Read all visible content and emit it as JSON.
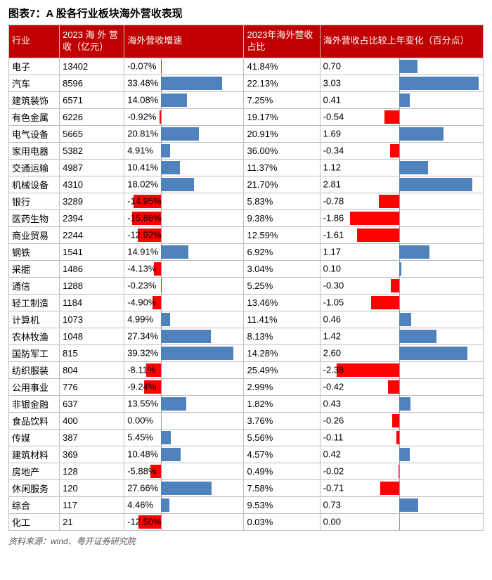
{
  "title": "图表7：A 股各行业板块海外营收表现",
  "source": "资料来源：wind、粤开证券研究院",
  "colors": {
    "header_bg": "#c00000",
    "header_text": "#ffffff",
    "pos_bar": "#4f81bd",
    "neg_bar": "#ff0000",
    "border": "#bfbfbf",
    "text": "#000000"
  },
  "columns": [
    "行业",
    "2023 海 外 营 收（亿元）",
    "海外营收增速",
    "2023年海外营收占比",
    "海外营收占比较上年变化（百分点）"
  ],
  "growth_axis": {
    "min": -20,
    "max": 45
  },
  "change_axis": {
    "min": -3.0,
    "max": 3.2
  },
  "rows": [
    {
      "industry": "电子",
      "revenue": "13402",
      "growth_pct": -0.07,
      "share": "41.84%",
      "change": 0.7
    },
    {
      "industry": "汽车",
      "revenue": "8596",
      "growth_pct": 33.48,
      "share": "22.13%",
      "change": 3.03
    },
    {
      "industry": "建筑装饰",
      "revenue": "6571",
      "growth_pct": 14.08,
      "share": "7.25%",
      "change": 0.41
    },
    {
      "industry": "有色金属",
      "revenue": "6226",
      "growth_pct": -0.92,
      "share": "19.17%",
      "change": -0.54
    },
    {
      "industry": "电气设备",
      "revenue": "5665",
      "growth_pct": 20.81,
      "share": "20.91%",
      "change": 1.69
    },
    {
      "industry": "家用电器",
      "revenue": "5382",
      "growth_pct": 4.91,
      "share": "36.00%",
      "change": -0.34
    },
    {
      "industry": "交通运输",
      "revenue": "4987",
      "growth_pct": 10.41,
      "share": "11.37%",
      "change": 1.12
    },
    {
      "industry": "机械设备",
      "revenue": "4310",
      "growth_pct": 18.02,
      "share": "21.70%",
      "change": 2.81
    },
    {
      "industry": "银行",
      "revenue": "3289",
      "growth_pct": -14.95,
      "share": "5.83%",
      "change": -0.78
    },
    {
      "industry": "医药生物",
      "revenue": "2394",
      "growth_pct": -15.88,
      "share": "9.38%",
      "change": -1.86
    },
    {
      "industry": "商业贸易",
      "revenue": "2244",
      "growth_pct": -12.92,
      "share": "12.59%",
      "change": -1.61
    },
    {
      "industry": "钢铁",
      "revenue": "1541",
      "growth_pct": 14.91,
      "share": "6.92%",
      "change": 1.17
    },
    {
      "industry": "采掘",
      "revenue": "1486",
      "growth_pct": -4.13,
      "share": "3.04%",
      "change": 0.1
    },
    {
      "industry": "通信",
      "revenue": "1288",
      "growth_pct": -0.23,
      "share": "5.25%",
      "change": -0.3
    },
    {
      "industry": "轻工制造",
      "revenue": "1184",
      "growth_pct": -4.9,
      "share": "13.46%",
      "change": -1.05
    },
    {
      "industry": "计算机",
      "revenue": "1073",
      "growth_pct": 4.99,
      "share": "11.41%",
      "change": 0.46
    },
    {
      "industry": "农林牧渔",
      "revenue": "1048",
      "growth_pct": 27.34,
      "share": "8.13%",
      "change": 1.42
    },
    {
      "industry": "国防军工",
      "revenue": "815",
      "growth_pct": 39.32,
      "share": "14.28%",
      "change": 2.6
    },
    {
      "industry": "纺织服装",
      "revenue": "804",
      "growth_pct": -8.11,
      "share": "25.49%",
      "change": -2.38
    },
    {
      "industry": "公用事业",
      "revenue": "776",
      "growth_pct": -9.24,
      "share": "2.99%",
      "change": -0.42
    },
    {
      "industry": "非银金融",
      "revenue": "637",
      "growth_pct": 13.55,
      "share": "1.82%",
      "change": 0.43
    },
    {
      "industry": "食品饮料",
      "revenue": "400",
      "growth_pct": 0.0,
      "share": "3.76%",
      "change": -0.26
    },
    {
      "industry": "传媒",
      "revenue": "387",
      "growth_pct": 5.45,
      "share": "5.56%",
      "change": -0.11
    },
    {
      "industry": "建筑材料",
      "revenue": "369",
      "growth_pct": 10.48,
      "share": "4.57%",
      "change": 0.42
    },
    {
      "industry": "房地产",
      "revenue": "128",
      "growth_pct": -5.88,
      "share": "0.49%",
      "change": -0.02
    },
    {
      "industry": "休闲服务",
      "revenue": "120",
      "growth_pct": 27.66,
      "share": "7.58%",
      "change": -0.71
    },
    {
      "industry": "综合",
      "revenue": "117",
      "growth_pct": 4.46,
      "share": "9.53%",
      "change": 0.73
    },
    {
      "industry": "化工",
      "revenue": "21",
      "growth_pct": -12.5,
      "share": "0.03%",
      "change": 0.0
    }
  ]
}
